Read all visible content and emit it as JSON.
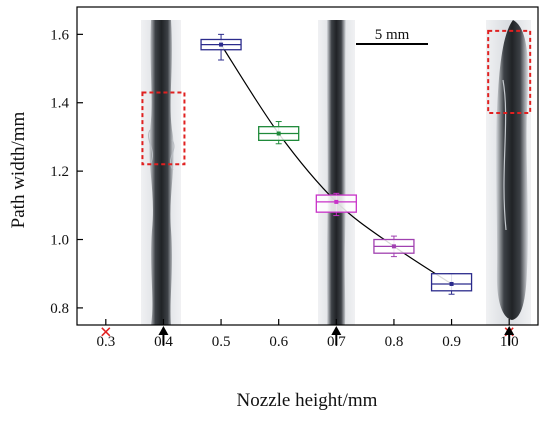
{
  "chart_data": {
    "type": "box",
    "xlabel": "Nozzle height/mm",
    "ylabel": "Path width/mm",
    "xlim": [
      0.25,
      1.05
    ],
    "ylim": [
      0.75,
      1.68
    ],
    "x_ticks": [
      0.3,
      0.4,
      0.5,
      0.6,
      0.7,
      0.8,
      0.9,
      1.0
    ],
    "y_ticks": [
      0.8,
      1.0,
      1.2,
      1.4,
      1.6
    ],
    "x_tick_labels": [
      "0.3",
      "0.4",
      "0.5",
      "0.6",
      "0.7",
      "0.8",
      "0.9",
      "1.0"
    ],
    "y_tick_labels": [
      "0.8",
      "1.0",
      "1.2",
      "1.4",
      "1.6"
    ],
    "boxes": [
      {
        "x": 0.5,
        "q1": 1.555,
        "median": 1.57,
        "q3": 1.585,
        "whisker_low": 1.525,
        "whisker_high": 1.6,
        "color": "#2b2b8c"
      },
      {
        "x": 0.6,
        "q1": 1.29,
        "median": 1.31,
        "q3": 1.33,
        "whisker_low": 1.28,
        "whisker_high": 1.345,
        "color": "#1f8a3a"
      },
      {
        "x": 0.7,
        "q1": 1.08,
        "median": 1.11,
        "q3": 1.13,
        "whisker_low": 1.07,
        "whisker_high": 1.135,
        "color": "#c832c8"
      },
      {
        "x": 0.8,
        "q1": 0.96,
        "median": 0.98,
        "q3": 1.0,
        "whisker_low": 0.95,
        "whisker_high": 1.01,
        "color": "#a040b0"
      },
      {
        "x": 0.9,
        "q1": 0.85,
        "median": 0.87,
        "q3": 0.9,
        "whisker_low": 0.84,
        "whisker_high": 0.9,
        "color": "#2b2b8c"
      }
    ],
    "fit_line": {
      "x": [
        0.5,
        0.6,
        0.7,
        0.8,
        0.9
      ],
      "y": [
        1.57,
        1.31,
        1.11,
        0.98,
        0.87
      ]
    },
    "failed_points": [
      {
        "x": 0.3,
        "y": 0.73
      },
      {
        "x": 1.0,
        "y": 0.73
      }
    ],
    "arrow_heights": [
      0.4,
      0.7,
      1.0
    ],
    "scale_bar_label": "5 mm",
    "defect_boxes": [
      {
        "x": 0.4,
        "y_low": 1.22,
        "y_high": 1.43
      },
      {
        "x": 1.0,
        "y_low": 1.37,
        "y_high": 1.61
      }
    ],
    "grid": false,
    "colors": {
      "failed_marker": "#e02020",
      "defect_box": "#e02020",
      "fit_line": "#000000"
    }
  }
}
